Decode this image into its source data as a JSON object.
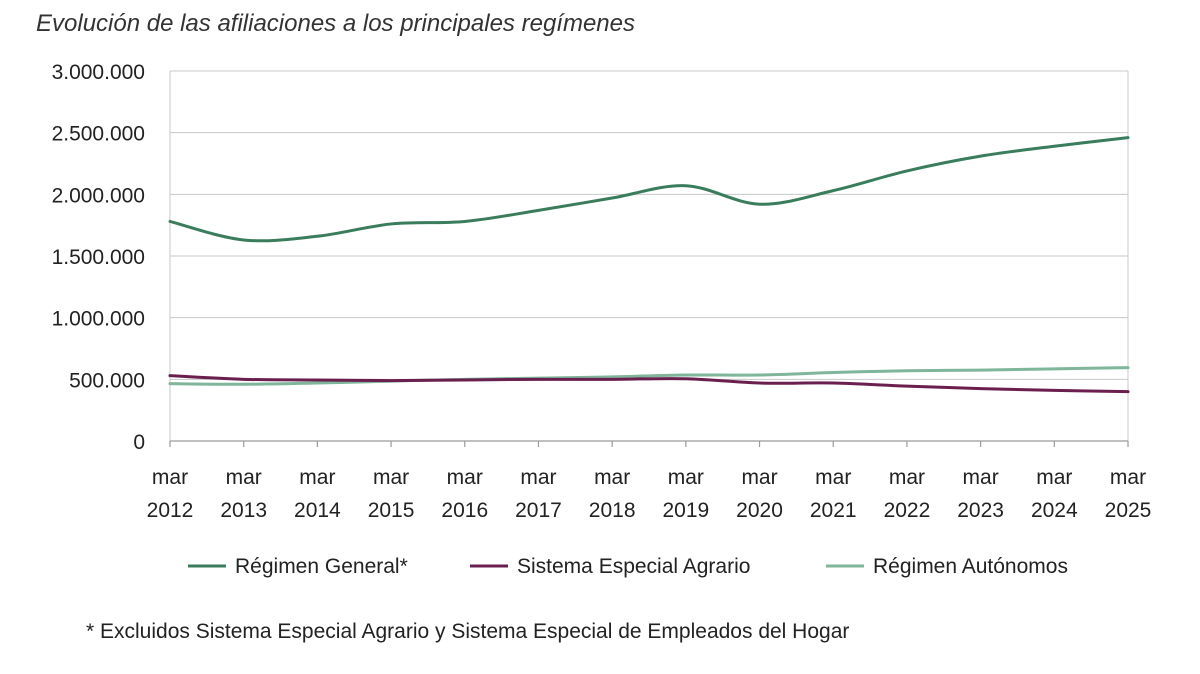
{
  "chart_data": {
    "type": "line",
    "title": "Evolución de las afiliaciones a los principales regímenes",
    "xlabel": "",
    "ylabel": "",
    "ylim": [
      0,
      3000000
    ],
    "yticks": [
      0,
      500000,
      1000000,
      1500000,
      2000000,
      2500000,
      3000000
    ],
    "ytick_labels": [
      "0",
      "500.000",
      "1.000.000",
      "1.500.000",
      "2.000.000",
      "2.500.000",
      "3.000.000"
    ],
    "categories": [
      [
        "mar",
        "2012"
      ],
      [
        "mar",
        "2013"
      ],
      [
        "mar",
        "2014"
      ],
      [
        "mar",
        "2015"
      ],
      [
        "mar",
        "2016"
      ],
      [
        "mar",
        "2017"
      ],
      [
        "mar",
        "2018"
      ],
      [
        "mar",
        "2019"
      ],
      [
        "mar",
        "2020"
      ],
      [
        "mar",
        "2021"
      ],
      [
        "mar",
        "2022"
      ],
      [
        "mar",
        "2023"
      ],
      [
        "mar",
        "2024"
      ],
      [
        "mar",
        "2025"
      ]
    ],
    "grid": true,
    "legend_position": "bottom",
    "series": [
      {
        "name": "Régimen General*",
        "color": "#3a7d5c",
        "values": [
          1780000,
          1630000,
          1660000,
          1760000,
          1780000,
          1870000,
          1970000,
          2070000,
          1920000,
          2030000,
          2190000,
          2310000,
          2390000,
          2460000
        ]
      },
      {
        "name": "Sistema Especial Agrario",
        "color": "#6b1f4f",
        "values": [
          530000,
          500000,
          495000,
          490000,
          495000,
          500000,
          500000,
          505000,
          470000,
          470000,
          445000,
          425000,
          410000,
          400000
        ]
      },
      {
        "name": "Régimen Autónomos",
        "color": "#7fb59a",
        "values": [
          465000,
          460000,
          470000,
          485000,
          500000,
          510000,
          520000,
          535000,
          535000,
          555000,
          570000,
          575000,
          585000,
          595000
        ]
      }
    ]
  },
  "footnote": "* Excluidos Sistema Especial Agrario y Sistema Especial de Empleados del Hogar"
}
